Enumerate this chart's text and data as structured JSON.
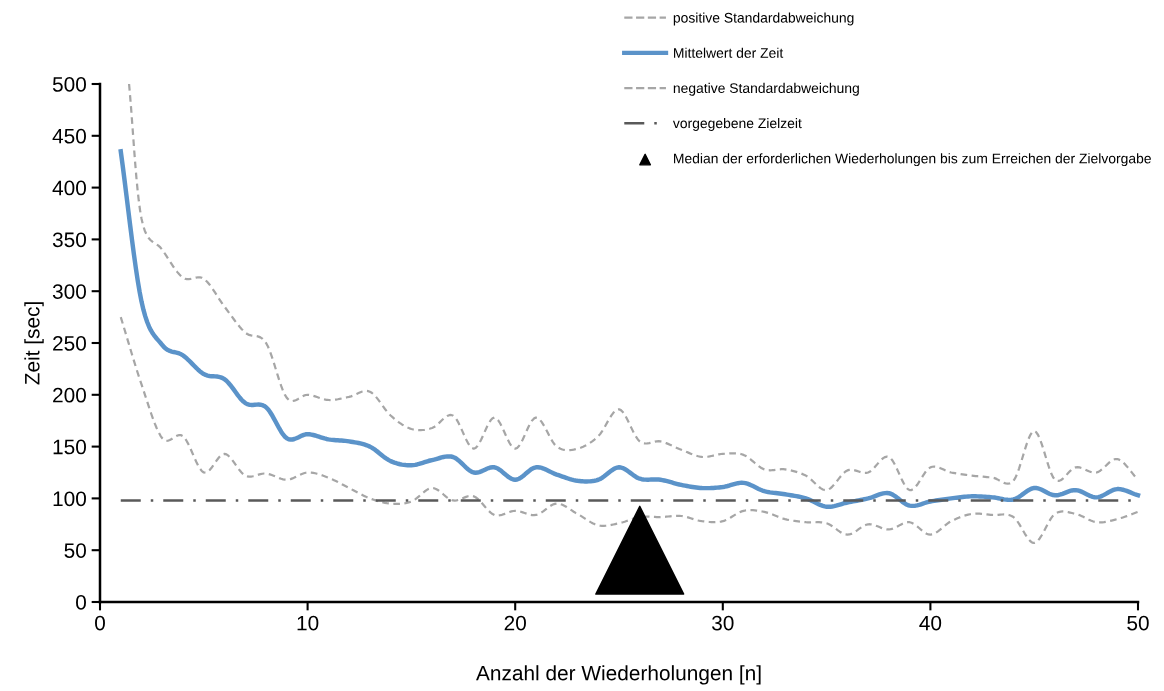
{
  "chart_data": {
    "type": "line",
    "xlabel": "Anzahl der Wiederholungen [n]",
    "ylabel": "Zeit [sec]",
    "xlim": [
      0,
      50
    ],
    "xticks": [
      0,
      10,
      20,
      30,
      40,
      50
    ],
    "ylim": [
      0,
      500
    ],
    "yticks": [
      0,
      50,
      100,
      150,
      200,
      250,
      300,
      350,
      400,
      450,
      500
    ],
    "grid": false,
    "legend": "top right",
    "line_style": "solid",
    "marker": "none",
    "x": [
      1,
      2,
      3,
      4,
      5,
      6,
      7,
      8,
      9,
      10,
      11,
      12,
      13,
      14,
      15,
      16,
      17,
      18,
      19,
      20,
      21,
      22,
      23,
      24,
      25,
      26,
      27,
      28,
      29,
      30,
      31,
      32,
      33,
      34,
      35,
      36,
      37,
      38,
      39,
      40,
      41,
      42,
      43,
      44,
      45,
      46,
      47,
      48,
      49,
      50
    ],
    "series": [
      {
        "name": "positive Standardabweichung",
        "color": "#a6a6a6",
        "line_style": "dashed",
        "x": [
          1.4,
          2,
          3,
          4,
          5,
          6,
          7,
          8,
          9,
          10,
          11,
          12,
          13,
          14,
          15,
          16,
          17,
          18,
          19,
          20,
          21,
          22,
          23,
          24,
          25,
          26,
          27,
          28,
          29,
          30,
          31,
          32,
          33,
          34,
          35,
          36,
          37,
          38,
          39,
          40,
          41,
          42,
          43,
          44,
          45,
          46,
          47,
          48,
          49,
          50
        ],
        "values": [
          500,
          370,
          340,
          313,
          312,
          285,
          260,
          250,
          197,
          200,
          195,
          198,
          203,
          180,
          167,
          168,
          180,
          148,
          178,
          148,
          178,
          150,
          148,
          160,
          186,
          155,
          155,
          147,
          140,
          143,
          142,
          128,
          128,
          122,
          108,
          127,
          125,
          140,
          108,
          130,
          125,
          122,
          120,
          117,
          165,
          118,
          130,
          125,
          138,
          118
        ]
      },
      {
        "name": "Mittelwert der Zeit",
        "color": "#5b93c9",
        "values": [
          435,
          290,
          248,
          238,
          220,
          215,
          192,
          188,
          158,
          162,
          157,
          155,
          150,
          136,
          132,
          137,
          140,
          125,
          130,
          118,
          130,
          123,
          117,
          118,
          130,
          119,
          118,
          113,
          110,
          111,
          115,
          107,
          104,
          100,
          92,
          96,
          100,
          105,
          93,
          97,
          100,
          102,
          101,
          99,
          110,
          103,
          108,
          101,
          109,
          103
        ]
      },
      {
        "name": "negative Standardabweichung",
        "color": "#a6a6a6",
        "line_style": "dashed",
        "values": [
          275,
          210,
          158,
          160,
          125,
          143,
          122,
          124,
          118,
          125,
          120,
          110,
          100,
          95,
          97,
          110,
          98,
          102,
          84,
          88,
          84,
          95,
          85,
          74,
          76,
          82,
          82,
          83,
          78,
          78,
          88,
          87,
          80,
          77,
          76,
          65,
          75,
          70,
          77,
          65,
          78,
          85,
          84,
          82,
          57,
          85,
          85,
          77,
          80,
          87
        ]
      },
      {
        "name": "Median der erforderlichen Wiederholungen bis zum Erreichen der Zielvorgabe",
        "type": "scatter",
        "marker": "triangle",
        "color": "#000000",
        "x": [
          26
        ],
        "values": [
          50
        ]
      }
    ],
    "ref_lines": [
      {
        "axis": "y",
        "value": 98,
        "label": "vorgegebene Zielzeit",
        "color": "#595959",
        "line_style": "dashdot"
      }
    ]
  }
}
